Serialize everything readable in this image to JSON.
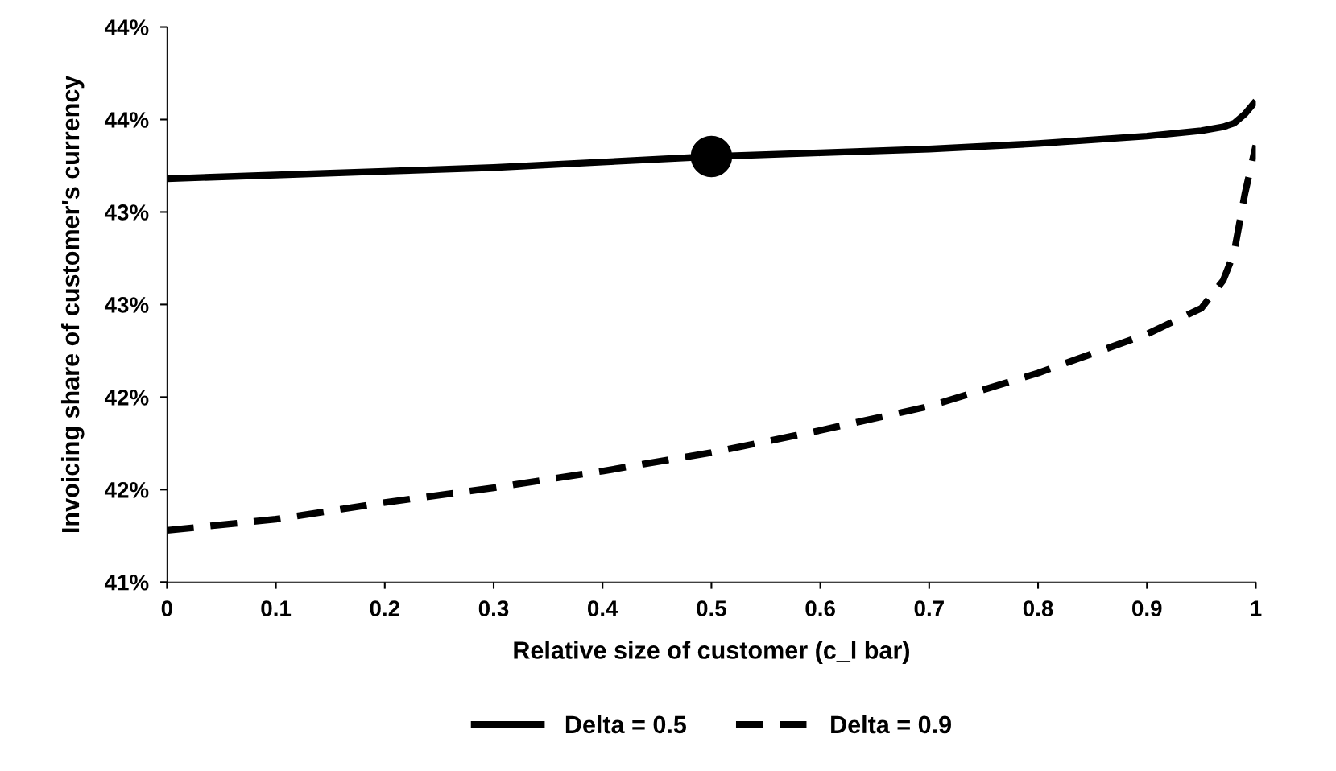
{
  "chart_data": {
    "type": "line",
    "xlabel": "Relative size of customer (c_l bar)",
    "ylabel": "Invoicing share of customer's currency",
    "xlim": [
      0,
      1
    ],
    "xticks": [
      0,
      0.1,
      0.2,
      0.3,
      0.4,
      0.5,
      0.6,
      0.7,
      0.8,
      0.9,
      1
    ],
    "ylim": [
      41,
      44
    ],
    "yticks": [
      {
        "value": 41,
        "label": "41%"
      },
      {
        "value": 41.5,
        "label": "42%"
      },
      {
        "value": 42,
        "label": "42%"
      },
      {
        "value": 42.5,
        "label": "43%"
      },
      {
        "value": 43,
        "label": "43%"
      },
      {
        "value": 43.5,
        "label": "44%"
      },
      {
        "value": 44,
        "label": "44%"
      }
    ],
    "grid": false,
    "legend": "bottom",
    "series": [
      {
        "name": "Delta = 0.5",
        "color": "#000000",
        "line_style": "solid",
        "marker": "none",
        "x": [
          0,
          0.1,
          0.2,
          0.3,
          0.4,
          0.5,
          0.6,
          0.7,
          0.8,
          0.9,
          0.95,
          0.97,
          0.98,
          0.99,
          1
        ],
        "values": [
          43.18,
          43.2,
          43.22,
          43.24,
          43.27,
          43.3,
          43.32,
          43.34,
          43.37,
          43.41,
          43.44,
          43.46,
          43.48,
          43.53,
          43.6
        ]
      },
      {
        "name": "Delta = 0.9",
        "color": "#000000",
        "line_style": "dashed",
        "marker": "none",
        "x": [
          0,
          0.1,
          0.2,
          0.3,
          0.4,
          0.5,
          0.6,
          0.7,
          0.8,
          0.9,
          0.95,
          0.97,
          0.98,
          0.99,
          1
        ],
        "values": [
          41.28,
          41.34,
          41.43,
          41.51,
          41.6,
          41.7,
          41.82,
          41.95,
          42.13,
          42.34,
          42.48,
          42.63,
          42.78,
          43.1,
          43.36
        ]
      },
      {
        "type": "scatter",
        "color": "#000000",
        "marker": "circle",
        "x": [
          0.5
        ],
        "values": [
          43.3
        ]
      }
    ]
  }
}
